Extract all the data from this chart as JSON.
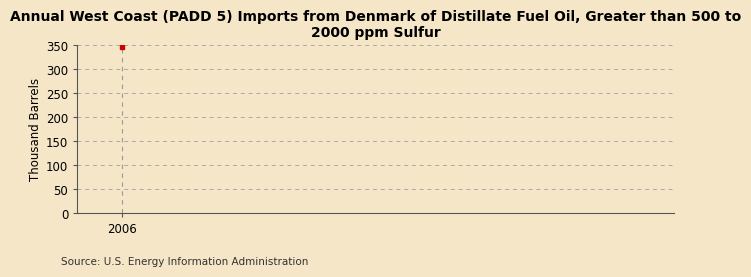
{
  "title": "Annual West Coast (PADD 5) Imports from Denmark of Distillate Fuel Oil, Greater than 500 to\n2000 ppm Sulfur",
  "ylabel": "Thousand Barrels",
  "source": "Source: U.S. Energy Information Administration",
  "background_color": "#f5e6c8",
  "x_data": [
    2006
  ],
  "y_data": [
    346
  ],
  "xlim": [
    2005.4,
    2013.5
  ],
  "ylim": [
    0,
    350
  ],
  "yticks": [
    0,
    50,
    100,
    150,
    200,
    250,
    300,
    350
  ],
  "xticks": [
    2006
  ],
  "point_color": "#cc0000",
  "vline_color": "#999999",
  "grid_color": "#aaaaaa",
  "spine_color": "#555555",
  "title_fontsize": 10,
  "label_fontsize": 8.5,
  "tick_fontsize": 8.5,
  "source_fontsize": 7.5
}
